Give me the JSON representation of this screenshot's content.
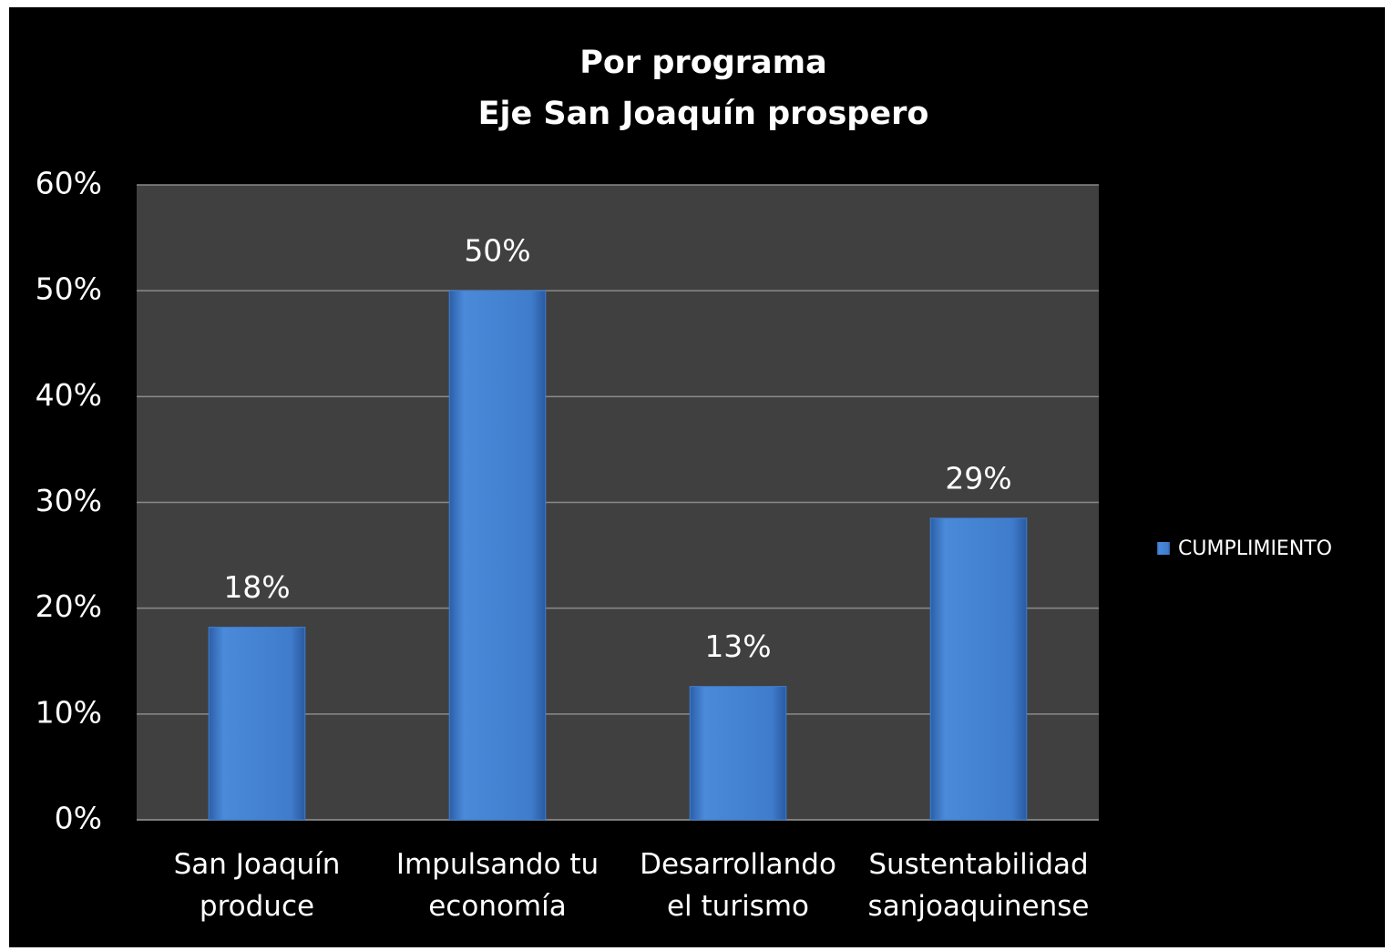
{
  "chart_data": {
    "type": "bar",
    "title": "Por programa",
    "subtitle": "Eje San Joaquín prospero",
    "categories": [
      "San Joaquín produce",
      "Impulsando tu economía",
      "Desarrollando el turismo",
      "Sustentabilidad sanjoaquinense"
    ],
    "series": [
      {
        "name": "CUMPLIMIENTO",
        "color": "#3f7fd4",
        "values": [
          18.2,
          50,
          12.6,
          28.5
        ],
        "value_labels": [
          "18%",
          "50%",
          "13%",
          "29%"
        ]
      }
    ],
    "ylim": [
      0,
      60
    ],
    "yticks": [
      {
        "value": 0,
        "label": "0%"
      },
      {
        "value": 10,
        "label": "10%"
      },
      {
        "value": 20,
        "label": "20%"
      },
      {
        "value": 30,
        "label": "30%"
      },
      {
        "value": 40,
        "label": "40%"
      },
      {
        "value": 50,
        "label": "50%"
      },
      {
        "value": 60,
        "label": "60%"
      }
    ],
    "grid": true,
    "legend": "right"
  }
}
